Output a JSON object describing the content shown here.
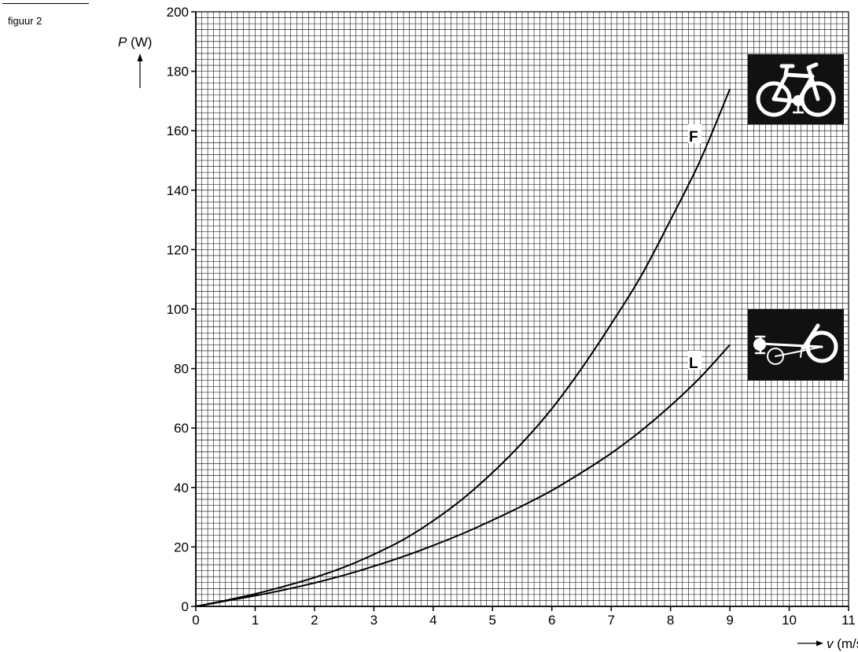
{
  "figure_label": "figuur 2",
  "chart_data": {
    "type": "line",
    "x": [
      0,
      0.5,
      1,
      1.5,
      2,
      2.5,
      3,
      3.5,
      4,
      4.5,
      5,
      5.5,
      6,
      6.5,
      7,
      7.5,
      8,
      8.5,
      9
    ],
    "series": [
      {
        "name": "F",
        "values": [
          0,
          2.0,
          4.2,
          6.8,
          9.7,
          13.2,
          17.5,
          22.5,
          28.8,
          36.2,
          45.0,
          55.0,
          66.5,
          80.0,
          95.0,
          111.0,
          130.0,
          150.0,
          174.0
        ]
      },
      {
        "name": "L",
        "values": [
          0,
          1.8,
          3.6,
          5.6,
          7.9,
          10.5,
          13.5,
          16.8,
          20.5,
          24.5,
          29.0,
          33.8,
          39.0,
          45.0,
          51.5,
          59.0,
          67.5,
          77.0,
          88.0
        ]
      }
    ],
    "ylabel_symbol": "P",
    "ylabel_unit": " (W)",
    "xlabel_symbol": "v",
    "xlabel_unit": " (m/s)",
    "xlim": [
      0,
      11
    ],
    "ylim": [
      0,
      200
    ],
    "x_ticks": [
      "0",
      "1",
      "2",
      "3",
      "4",
      "5",
      "6",
      "7",
      "8",
      "9",
      "10",
      "11"
    ],
    "y_ticks": [
      "0",
      "20",
      "40",
      "60",
      "80",
      "100",
      "120",
      "140",
      "160",
      "180",
      "200"
    ],
    "grid": true,
    "icons": [
      {
        "name": "upright-bicycle-icon",
        "series": "F"
      },
      {
        "name": "recumbent-bicycle-icon",
        "series": "L"
      }
    ]
  }
}
